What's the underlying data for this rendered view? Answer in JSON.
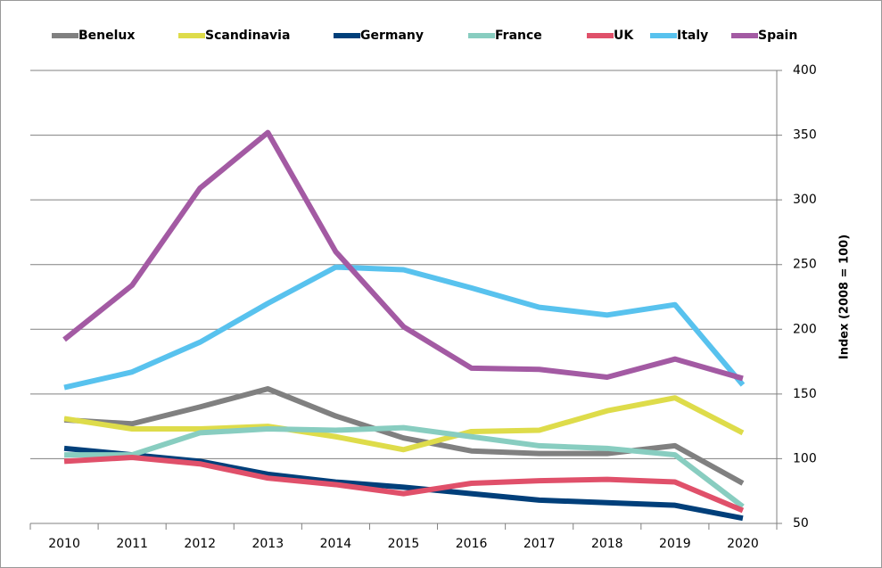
{
  "chart_data": {
    "type": "line",
    "y_axis_label": "Index (2008 = 100)",
    "categories": [
      "2010",
      "2011",
      "2012",
      "2013",
      "2014",
      "2015",
      "2016",
      "2017",
      "2018",
      "2019",
      "2020"
    ],
    "series": [
      {
        "name": "Benelux",
        "color": "#808080",
        "values": [
          130,
          127,
          140,
          154,
          133,
          116,
          106,
          104,
          104,
          110,
          81
        ]
      },
      {
        "name": "Scandinavia",
        "color": "#dedc4a",
        "values": [
          131,
          123,
          123,
          125,
          117,
          107,
          121,
          122,
          137,
          147,
          120
        ]
      },
      {
        "name": "Germany",
        "color": "#003f7a",
        "values": [
          108,
          103,
          98,
          88,
          82,
          78,
          73,
          68,
          66,
          64,
          54
        ]
      },
      {
        "name": "France",
        "color": "#88cdc0",
        "values": [
          103,
          103,
          120,
          123,
          122,
          124,
          117,
          110,
          108,
          103,
          63
        ]
      },
      {
        "name": "UK",
        "color": "#e0506a",
        "values": [
          98,
          101,
          96,
          85,
          80,
          73,
          81,
          83,
          84,
          82,
          60
        ]
      },
      {
        "name": "Italy",
        "color": "#58c2ee",
        "values": [
          155,
          167,
          190,
          220,
          248,
          246,
          232,
          217,
          211,
          219,
          157
        ]
      },
      {
        "name": "Spain",
        "color": "#a35aa3",
        "values": [
          192,
          234,
          309,
          352,
          260,
          202,
          170,
          169,
          163,
          177,
          162
        ]
      }
    ],
    "ylim": [
      50,
      400
    ],
    "yticks": [
      50,
      100,
      150,
      200,
      250,
      300,
      350,
      400
    ],
    "grid": true,
    "legend": "top"
  }
}
